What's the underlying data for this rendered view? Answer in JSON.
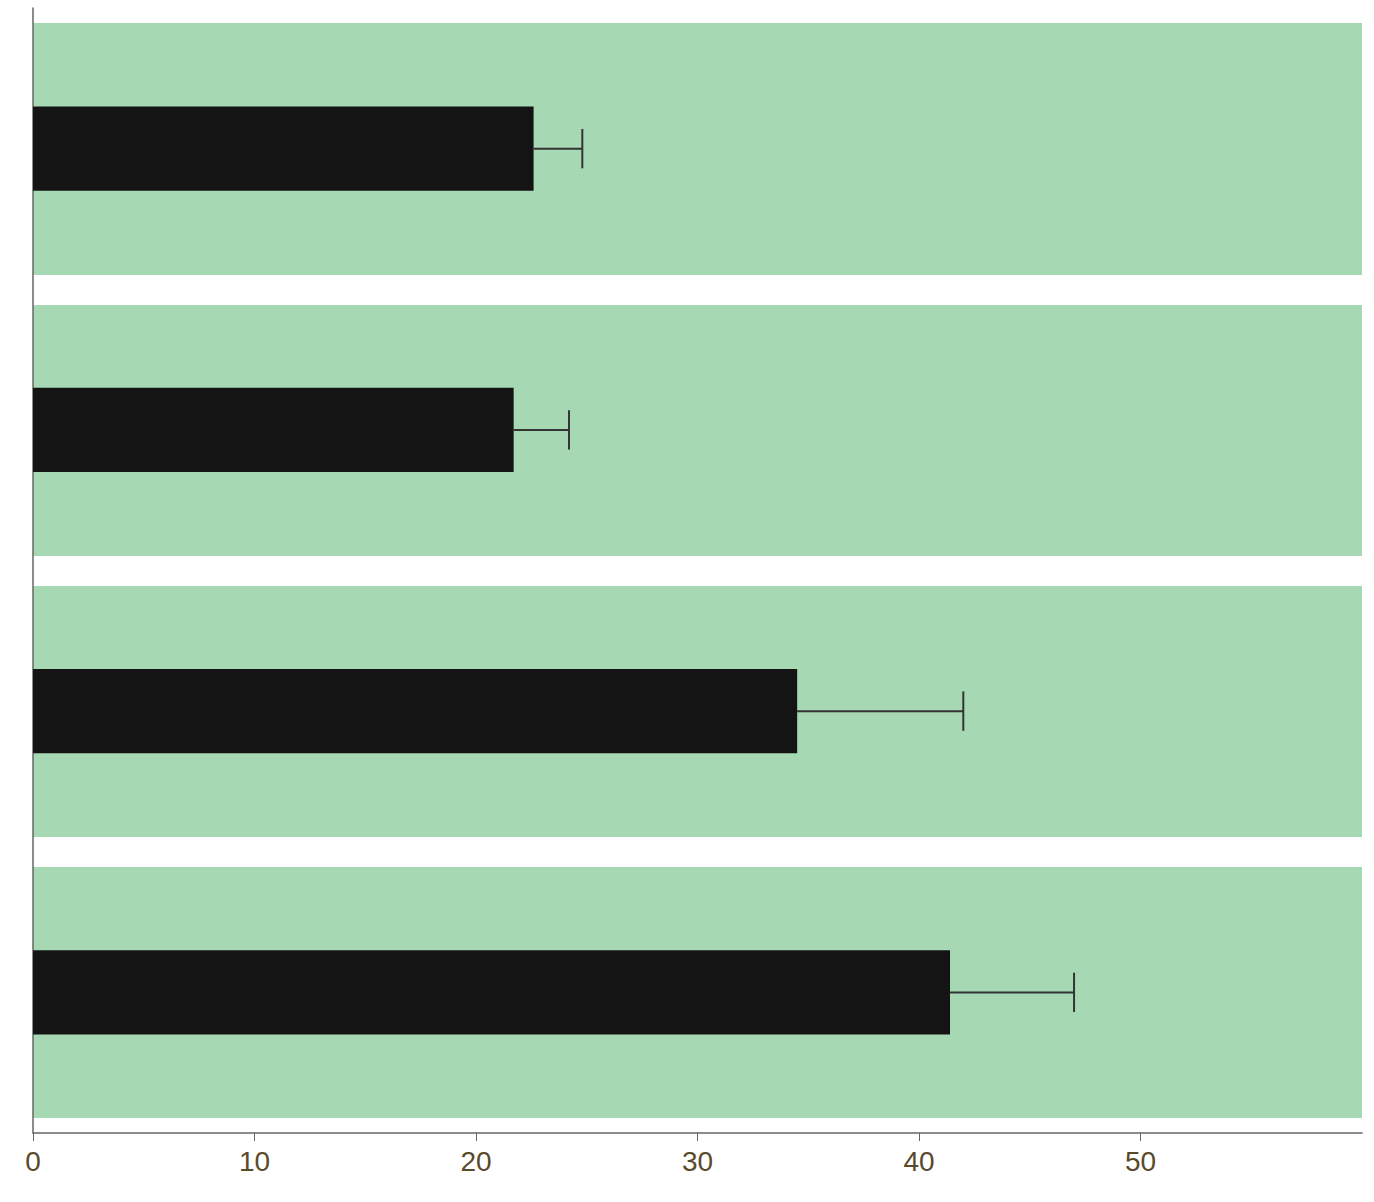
{
  "chart_data": {
    "type": "bar",
    "orientation": "horizontal",
    "categories": [
      null,
      null,
      null,
      null
    ],
    "values": [
      22.6,
      21.7,
      34.5,
      41.4
    ],
    "errors": [
      2.2,
      2.5,
      7.5,
      5.6
    ],
    "color": "#141414",
    "xlim": [
      0,
      60
    ],
    "xticks": [
      0,
      10,
      20,
      30,
      40,
      50
    ],
    "grid": false,
    "tick_labels": "x"
  }
}
